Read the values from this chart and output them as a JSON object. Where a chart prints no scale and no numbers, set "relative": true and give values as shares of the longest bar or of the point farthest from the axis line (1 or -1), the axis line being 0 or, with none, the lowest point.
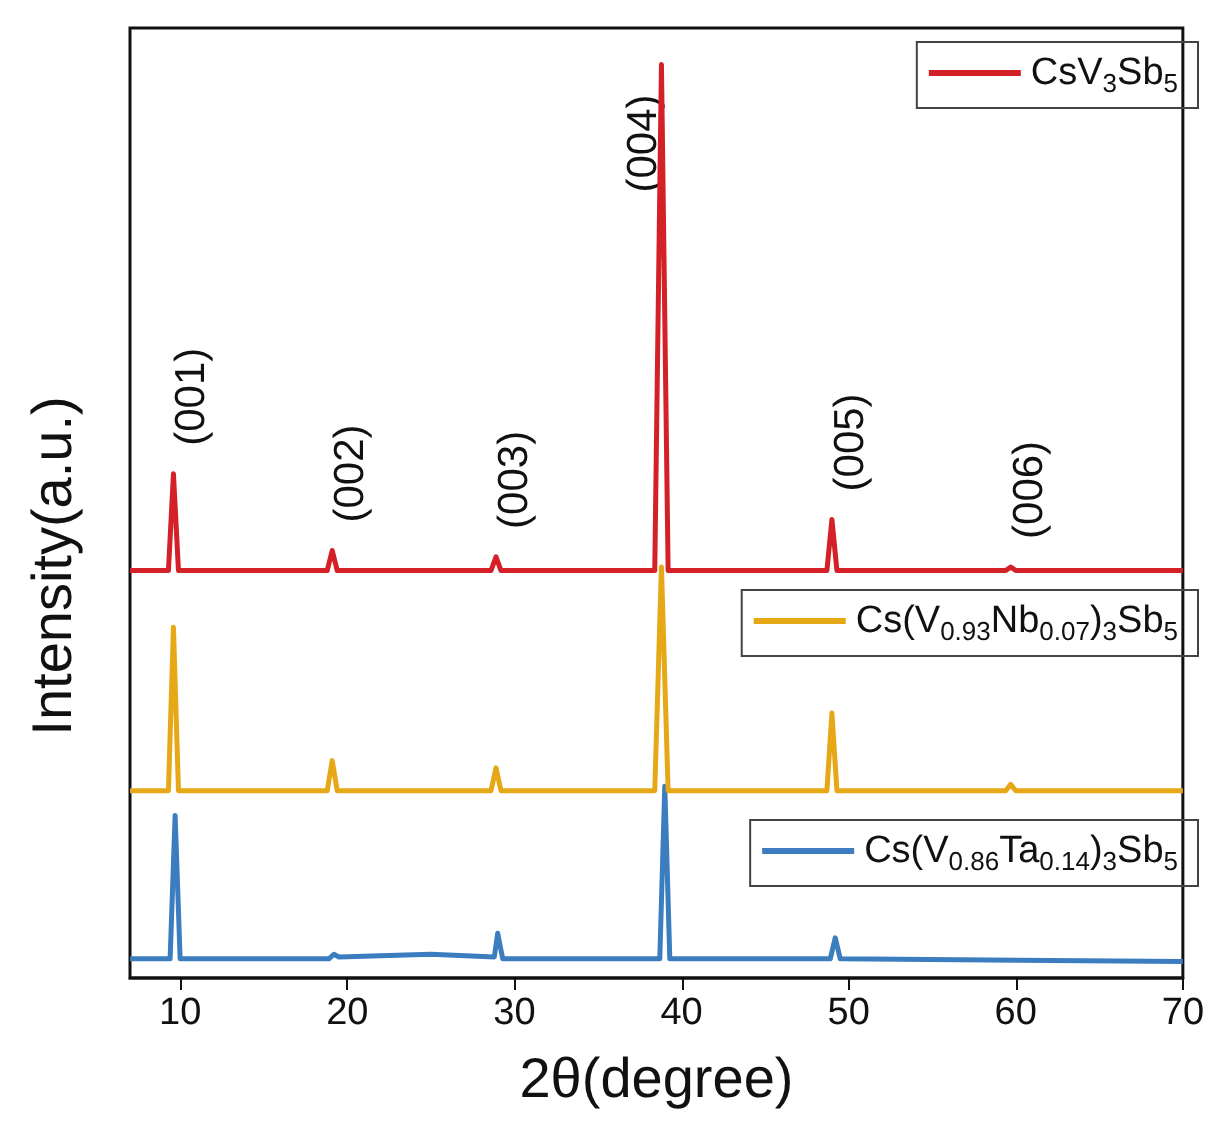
{
  "chart_data": {
    "type": "line",
    "relative": true,
    "xlabel": "2θ(degree)",
    "ylabel": "Intensity(a.u.)",
    "xlim": [
      7,
      70
    ],
    "xticks": [
      10,
      20,
      30,
      40,
      50,
      60,
      70
    ],
    "legend": "right",
    "grid": false,
    "marker": "none",
    "line_style": "solid",
    "series": [
      {
        "name": "CsV$_{3}$Sb$_{5}$",
        "color": "#d42027",
        "x": [
          7,
          9.3,
          9.6,
          9.9,
          18.8,
          19.1,
          19.4,
          28.6,
          28.9,
          29.2,
          38.4,
          38.8,
          39.2,
          48.7,
          49.0,
          49.3,
          59.4,
          59.7,
          60.0,
          70
        ],
        "values": [
          0.446,
          0.446,
          0.552,
          0.446,
          0.446,
          0.468,
          0.446,
          0.446,
          0.461,
          0.446,
          0.446,
          1.0,
          0.446,
          0.446,
          0.502,
          0.446,
          0.446,
          0.45,
          0.446,
          0.446
        ]
      },
      {
        "name": "Cs(V$_{0.93}$Nb$_{0.07}$)$_{3}$Sb$_{5}$",
        "color": "#e6a817",
        "x": [
          7,
          9.3,
          9.6,
          9.9,
          18.8,
          19.1,
          19.4,
          28.6,
          28.9,
          29.2,
          38.4,
          38.8,
          39.2,
          48.7,
          49.0,
          49.3,
          59.4,
          59.7,
          60.0,
          70
        ],
        "values": [
          0.205,
          0.205,
          0.384,
          0.205,
          0.205,
          0.238,
          0.205,
          0.205,
          0.23,
          0.205,
          0.205,
          0.45,
          0.205,
          0.205,
          0.29,
          0.205,
          0.205,
          0.212,
          0.205,
          0.205
        ]
      },
      {
        "name": "Cs(V$_{0.86}$Ta$_{0.14}$)$_{3}$Sb$_{5}$",
        "color": "#3b7dbf",
        "x": [
          7,
          9.4,
          9.7,
          10.0,
          18.9,
          19.2,
          19.5,
          25,
          28.8,
          29.0,
          29.3,
          38.7,
          39.0,
          39.3,
          48.9,
          49.2,
          49.5,
          70
        ],
        "values": [
          0.021,
          0.021,
          0.178,
          0.021,
          0.021,
          0.026,
          0.023,
          0.026,
          0.023,
          0.049,
          0.021,
          0.021,
          0.21,
          0.021,
          0.021,
          0.044,
          0.021,
          0.018
        ]
      }
    ],
    "annotations": [
      {
        "text": "(001)",
        "x": 9.6,
        "y": 0.552
      },
      {
        "text": "(002)",
        "x": 19.1,
        "y": 0.468
      },
      {
        "text": "(003)",
        "x": 28.9,
        "y": 0.461
      },
      {
        "text": "(004)",
        "x": 38.8,
        "y": 1.0
      },
      {
        "text": "(005)",
        "x": 49.0,
        "y": 0.502
      },
      {
        "text": "(006)",
        "x": 59.7,
        "y": 0.45
      }
    ]
  }
}
